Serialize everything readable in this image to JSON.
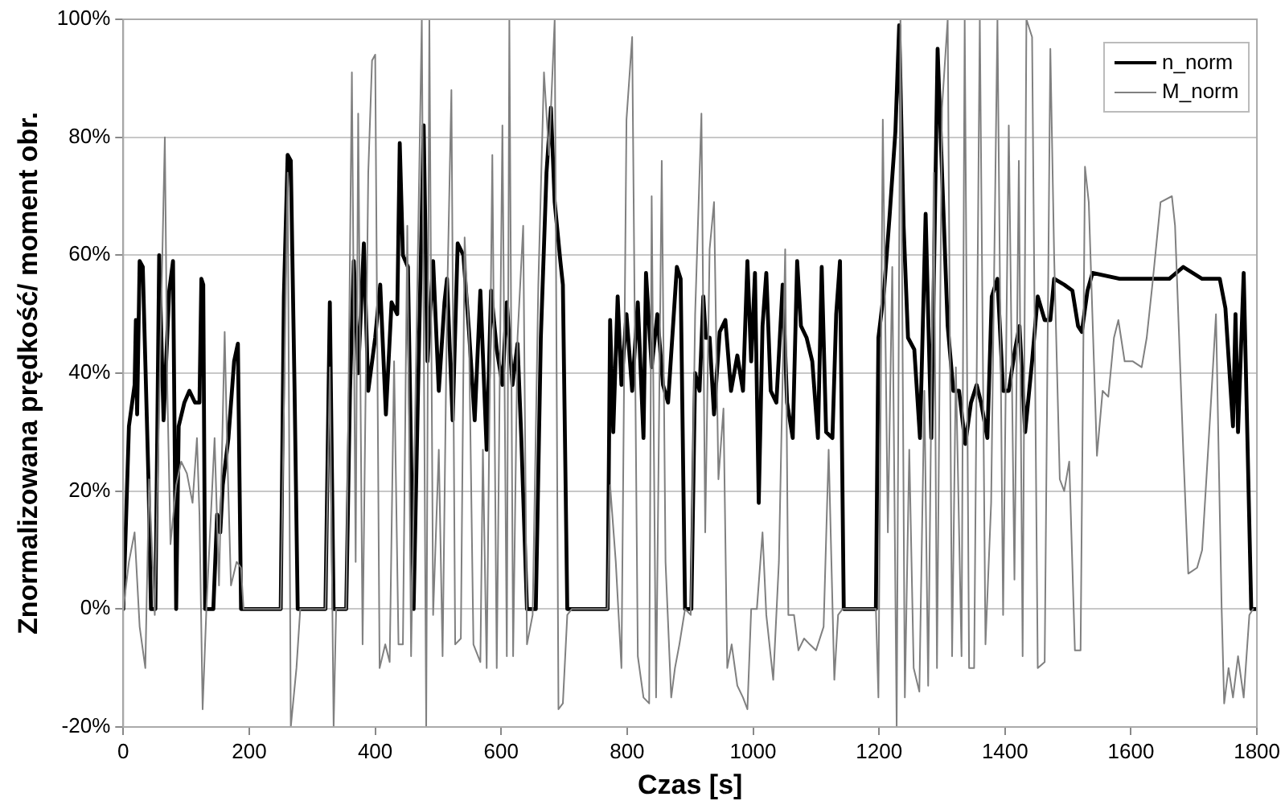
{
  "chart_data": {
    "type": "line",
    "xlabel": "Czas [s]",
    "ylabel": "Znormalizowana prędkość/ moment obr.",
    "xlim": [
      0,
      1800
    ],
    "xticks": [
      0,
      200,
      400,
      600,
      800,
      1000,
      1200,
      1400,
      1600,
      1800
    ],
    "ylim": [
      -20,
      100
    ],
    "yticks": [
      {
        "value": -20,
        "label": "-20%"
      },
      {
        "value": 0,
        "label": "0%"
      },
      {
        "value": 20,
        "label": "20%"
      },
      {
        "value": 40,
        "label": "40%"
      },
      {
        "value": 60,
        "label": "60%"
      },
      {
        "value": 80,
        "label": "80%"
      },
      {
        "value": 100,
        "label": "100%"
      }
    ],
    "grid": "y",
    "legend": "top right",
    "marker": "none",
    "line_style": "solid",
    "series": [
      {
        "name": "n_norm",
        "color": "#000000",
        "x": [
          0,
          9,
          18,
          20,
          22,
          26,
          31,
          40,
          44,
          51,
          57,
          64,
          73,
          79,
          84,
          88,
          97,
          105,
          114,
          121,
          124,
          127,
          130,
          143,
          149,
          154,
          158,
          167,
          176,
          182,
          187,
          250,
          255,
          261,
          266,
          272,
          277,
          321,
          328,
          334,
          354,
          360,
          366,
          373,
          382,
          389,
          400,
          408,
          417,
          426,
          435,
          439,
          444,
          452,
          461,
          468,
          477,
          483,
          492,
          501,
          510,
          514,
          523,
          531,
          540,
          549,
          558,
          567,
          577,
          584,
          593,
          602,
          609,
          618,
          626,
          632,
          641,
          655,
          663,
          672,
          679,
          685,
          694,
          698,
          705,
          769,
          773,
          778,
          785,
          791,
          799,
          808,
          817,
          826,
          830,
          839,
          848,
          857,
          865,
          879,
          885,
          892,
          902,
          908,
          915,
          921,
          925,
          931,
          938,
          947,
          956,
          965,
          975,
          984,
          991,
          997,
          1003,
          1009,
          1015,
          1021,
          1028,
          1037,
          1047,
          1054,
          1063,
          1070,
          1076,
          1085,
          1094,
          1103,
          1109,
          1116,
          1126,
          1132,
          1138,
          1144,
          1195,
          1199,
          1208,
          1217,
          1226,
          1232,
          1239,
          1246,
          1256,
          1265,
          1274,
          1283,
          1293,
          1300,
          1309,
          1318,
          1327,
          1337,
          1346,
          1355,
          1362,
          1372,
          1379,
          1388,
          1397,
          1406,
          1416,
          1423,
          1432,
          1443,
          1452,
          1463,
          1472,
          1478,
          1494,
          1507,
          1516,
          1522,
          1531,
          1539,
          1582,
          1625,
          1661,
          1683,
          1713,
          1741,
          1750,
          1762,
          1766,
          1770,
          1779,
          1791,
          1800
        ],
        "values": [
          0,
          31,
          38,
          49,
          33,
          59,
          58,
          22,
          0,
          0,
          60,
          32,
          54,
          59,
          0,
          31,
          35,
          37,
          35,
          35,
          56,
          55,
          0,
          0,
          16,
          13,
          21,
          29,
          42,
          45,
          0,
          0,
          53,
          77,
          76,
          37,
          0,
          0,
          52,
          0,
          0,
          37,
          59,
          40,
          62,
          37,
          46,
          55,
          33,
          52,
          50,
          79,
          60,
          58,
          0,
          37,
          82,
          42,
          59,
          37,
          52,
          56,
          32,
          62,
          60,
          47,
          32,
          54,
          27,
          54,
          44,
          38,
          52,
          38,
          45,
          29,
          0,
          0,
          46,
          74,
          85,
          69,
          59,
          55,
          0,
          0,
          49,
          30,
          53,
          38,
          50,
          37,
          52,
          29,
          57,
          41,
          50,
          38,
          35,
          58,
          56,
          0,
          0,
          40,
          37,
          53,
          46,
          46,
          33,
          47,
          49,
          37,
          43,
          37,
          59,
          42,
          57,
          18,
          48,
          57,
          37,
          35,
          55,
          35,
          29,
          59,
          48,
          46,
          42,
          29,
          58,
          30,
          29,
          50,
          59,
          0,
          0,
          46,
          54,
          67,
          81,
          99,
          65,
          46,
          44,
          29,
          67,
          29,
          95,
          74,
          48,
          37,
          37,
          28,
          35,
          38,
          35,
          29,
          53,
          56,
          37,
          37,
          44,
          48,
          30,
          42,
          53,
          49,
          49,
          56,
          55,
          54,
          48,
          47,
          54,
          57,
          56,
          56,
          56,
          58,
          56,
          56,
          51,
          31,
          50,
          30,
          57,
          0,
          0
        ]
      },
      {
        "name": "M_norm",
        "color": "#808080",
        "x": [
          0,
          9,
          18,
          26,
          35,
          41,
          50,
          66,
          70,
          75,
          84,
          92,
          101,
          110,
          117,
          121,
          126,
          132,
          145,
          152,
          161,
          165,
          171,
          180,
          187,
          191,
          250,
          261,
          266,
          275,
          281,
          321,
          328,
          334,
          338,
          354,
          363,
          369,
          373,
          380,
          389,
          395,
          400,
          407,
          416,
          423,
          430,
          437,
          444,
          451,
          457,
          474,
          481,
          486,
          492,
          501,
          507,
          514,
          521,
          527,
          536,
          542,
          549,
          556,
          567,
          571,
          577,
          586,
          593,
          602,
          609,
          613,
          619,
          626,
          635,
          641,
          650,
          659,
          668,
          676,
          685,
          691,
          698,
          705,
          712,
          769,
          773,
          782,
          791,
          799,
          808,
          817,
          826,
          835,
          839,
          846,
          855,
          861,
          870,
          876,
          883,
          892,
          901,
          908,
          918,
          924,
          931,
          938,
          945,
          953,
          959,
          966,
          975,
          984,
          991,
          997,
          1006,
          1015,
          1021,
          1032,
          1041,
          1051,
          1056,
          1065,
          1072,
          1081,
          1090,
          1100,
          1112,
          1120,
          1129,
          1135,
          1142,
          1195,
          1199,
          1206,
          1214,
          1221,
          1228,
          1234,
          1241,
          1248,
          1255,
          1264,
          1272,
          1278,
          1287,
          1292,
          1300,
          1309,
          1316,
          1322,
          1331,
          1336,
          1343,
          1351,
          1360,
          1369,
          1378,
          1388,
          1397,
          1406,
          1415,
          1422,
          1428,
          1434,
          1443,
          1452,
          1463,
          1472,
          1478,
          1487,
          1494,
          1502,
          1511,
          1520,
          1527,
          1533,
          1546,
          1555,
          1564,
          1573,
          1580,
          1590,
          1603,
          1617,
          1625,
          1634,
          1647,
          1665,
          1670,
          1683,
          1691,
          1705,
          1713,
          1727,
          1735,
          1744,
          1748,
          1755,
          1762,
          1770,
          1779,
          1788,
          1794
        ],
        "values": [
          0,
          8,
          13,
          -3,
          -10,
          22,
          -1,
          80,
          37,
          11,
          21,
          25,
          23,
          18,
          29,
          16,
          -17,
          0,
          29,
          4,
          47,
          27,
          4,
          8,
          7,
          0,
          0,
          74,
          -20,
          -10,
          0,
          0,
          41,
          -20,
          0,
          0,
          91,
          8,
          84,
          -6,
          74,
          93,
          94,
          -10,
          -6,
          -9,
          42,
          -6,
          -6,
          65,
          -8,
          100,
          -20,
          100,
          -1,
          27,
          -8,
          51,
          88,
          -6,
          -5,
          63,
          46,
          -6,
          -9,
          27,
          -10,
          77,
          -10,
          82,
          -8,
          100,
          -8,
          46,
          65,
          -6,
          -1,
          55,
          91,
          77,
          100,
          -17,
          -16,
          -1,
          0,
          0,
          21,
          8,
          -10,
          83,
          97,
          -8,
          -15,
          -16,
          70,
          -15,
          76,
          8,
          -15,
          -10,
          -6,
          0,
          -1,
          50,
          84,
          13,
          61,
          69,
          22,
          34,
          -10,
          -6,
          -13,
          -15,
          -17,
          0,
          0,
          13,
          -1,
          -12,
          8,
          61,
          -1,
          -1,
          -7,
          -5,
          -6,
          -7,
          -3,
          27,
          -12,
          -1,
          0,
          0,
          -15,
          83,
          13,
          58,
          -20,
          100,
          -15,
          27,
          -10,
          -14,
          37,
          -13,
          74,
          -10,
          85,
          100,
          -8,
          41,
          -8,
          100,
          -10,
          -10,
          100,
          -6,
          18,
          100,
          -1,
          82,
          5,
          76,
          -8,
          100,
          97,
          -10,
          -9,
          95,
          60,
          22,
          20,
          25,
          -7,
          -7,
          75,
          69,
          26,
          37,
          36,
          46,
          49,
          42,
          42,
          41,
          46,
          55,
          69,
          70,
          65,
          27,
          6,
          7,
          10,
          35,
          50,
          0,
          -16,
          -10,
          -15,
          -8,
          -15,
          -1,
          0
        ]
      }
    ]
  }
}
